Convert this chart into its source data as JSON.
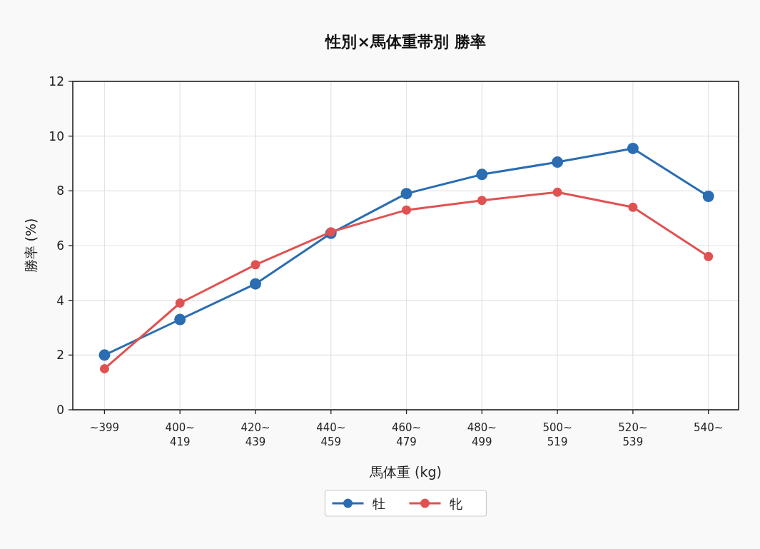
{
  "chart_data": {
    "type": "line",
    "title": "性別×馬体重帯別 勝率",
    "xlabel": "馬体重 (kg)",
    "ylabel": "勝率 (%)",
    "categories": [
      "~399",
      "400~\n419",
      "420~\n439",
      "440~\n459",
      "460~\n479",
      "480~\n499",
      "500~\n519",
      "520~\n539",
      "540~"
    ],
    "series": [
      {
        "name": "牡",
        "color": "#2a6db2",
        "values": [
          2.0,
          3.3,
          4.6,
          6.45,
          7.9,
          8.6,
          9.05,
          9.55,
          7.8
        ]
      },
      {
        "name": "牝",
        "color": "#e05252",
        "values": [
          1.5,
          3.9,
          5.3,
          6.5,
          7.3,
          7.65,
          7.95,
          7.4,
          5.6
        ]
      }
    ],
    "ylim": [
      0,
      12
    ],
    "yticks": [
      0,
      2,
      4,
      6,
      8,
      10,
      12
    ],
    "grid": true,
    "legend": "bottom",
    "marker": "circle",
    "line_style": "solid"
  }
}
